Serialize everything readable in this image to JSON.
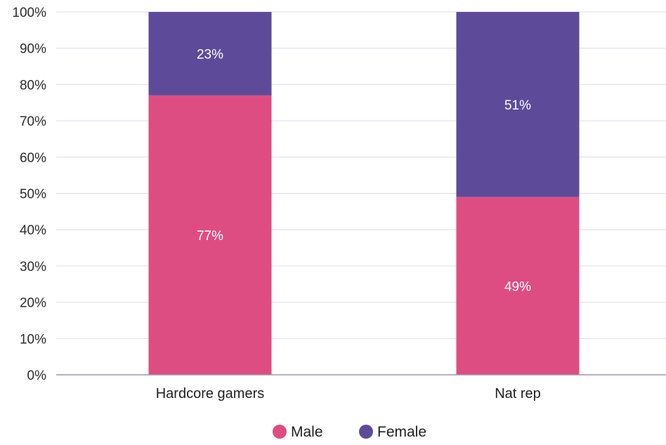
{
  "chart_data": {
    "type": "bar",
    "stacked": true,
    "categories": [
      "Hardcore gamers",
      "Nat rep"
    ],
    "series": [
      {
        "name": "Male",
        "values": [
          77,
          49
        ],
        "labels": [
          "77%",
          "49%"
        ],
        "color": "#de4d82"
      },
      {
        "name": "Female",
        "values": [
          23,
          51
        ],
        "labels": [
          "23%",
          "51%"
        ],
        "color": "#5d4b9a"
      }
    ],
    "ylim": [
      0,
      100
    ],
    "yticks": [
      0,
      10,
      20,
      30,
      40,
      50,
      60,
      70,
      80,
      90,
      100
    ],
    "ytick_labels": [
      "0%",
      "10%",
      "20%",
      "30%",
      "40%",
      "50%",
      "60%",
      "70%",
      "80%",
      "90%",
      "100%"
    ],
    "title": "",
    "xlabel": "",
    "ylabel": "",
    "grid": true,
    "legend_position": "bottom-center",
    "colors": {
      "grid": "#dcdcec",
      "axis": "#9a9aaa"
    }
  }
}
